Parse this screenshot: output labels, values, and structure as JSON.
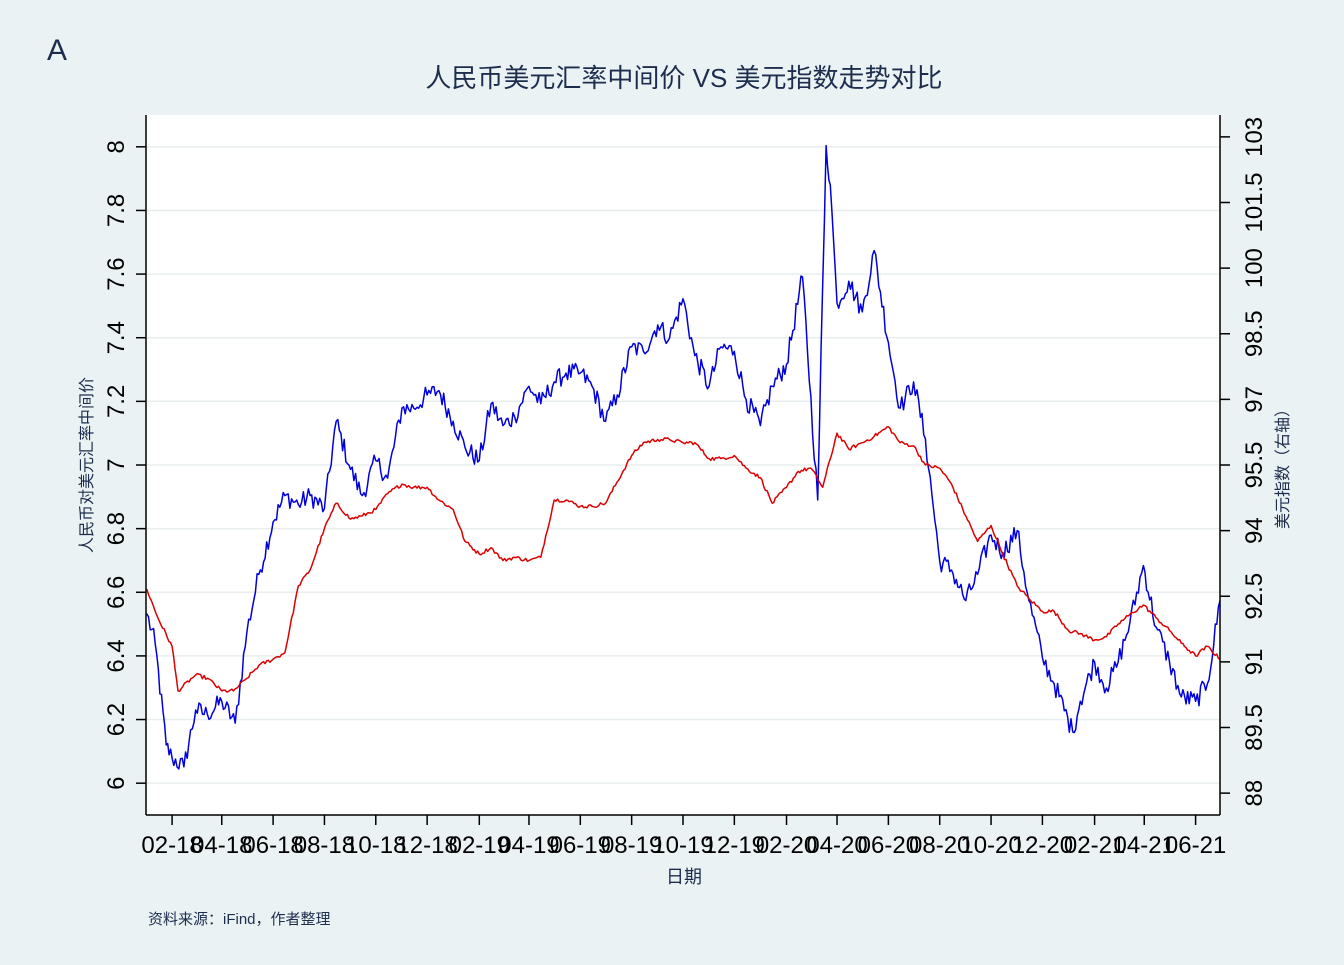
{
  "panel_label": "A",
  "source_note": "资料来源：iFind，作者整理",
  "chart_data": {
    "type": "line",
    "title": "人民币美元汇率中间价 VS 美元指数走势对比",
    "xlabel": "日期",
    "ylabel_left": "人民币对美元汇率中间价",
    "ylabel_right": "美元指数（右轴）",
    "x_range": [
      "2018-01-01",
      "2021-06-30"
    ],
    "x_ticks": [
      "02-18",
      "04-18",
      "06-18",
      "08-18",
      "10-18",
      "12-18",
      "02-19",
      "04-19",
      "06-19",
      "08-19",
      "10-19",
      "12-19",
      "02-20",
      "04-20",
      "06-20",
      "08-20",
      "10-20",
      "12-20",
      "02-21",
      "04-21",
      "06-21"
    ],
    "y_left": {
      "ylim": [
        5.9,
        8.1
      ],
      "ticks": [
        "6",
        "6.2",
        "6.4",
        "6.6",
        "6.8",
        "7",
        "7.2",
        "7.4",
        "7.6",
        "7.8",
        "8"
      ]
    },
    "y_right": {
      "ylim": [
        87.5,
        103.5
      ],
      "ticks": [
        "88",
        "89.5",
        "91",
        "92.5",
        "94",
        "95.5",
        "97",
        "98.5",
        "100",
        "101.5",
        "103"
      ]
    },
    "grid": true,
    "colors": {
      "usd_index": "#0000dd",
      "cny_rate": "#dd0000",
      "axis": "#000000",
      "grid": "#e8eeee",
      "text": "#1e2d4e"
    },
    "series": [
      {
        "axis": "right",
        "color": "#0000dd",
        "points": [
          [
            "2018-01-02",
            92.1
          ],
          [
            "2018-01-12",
            91.4
          ],
          [
            "2018-01-25",
            89.1
          ],
          [
            "2018-02-01",
            88.8
          ],
          [
            "2018-02-15",
            88.6
          ],
          [
            "2018-03-01",
            89.9
          ],
          [
            "2018-03-15",
            89.8
          ],
          [
            "2018-04-01",
            90.1
          ],
          [
            "2018-04-17",
            89.6
          ],
          [
            "2018-05-01",
            91.7
          ],
          [
            "2018-05-15",
            93.0
          ],
          [
            "2018-06-01",
            94.2
          ],
          [
            "2018-06-15",
            94.8
          ],
          [
            "2018-07-01",
            94.6
          ],
          [
            "2018-07-15",
            94.8
          ],
          [
            "2018-08-01",
            94.5
          ],
          [
            "2018-08-15",
            96.5
          ],
          [
            "2018-09-01",
            95.4
          ],
          [
            "2018-09-15",
            94.8
          ],
          [
            "2018-10-01",
            95.6
          ],
          [
            "2018-10-15",
            95.2
          ],
          [
            "2018-11-01",
            96.8
          ],
          [
            "2018-11-15",
            96.8
          ],
          [
            "2018-12-01",
            97.1
          ],
          [
            "2018-12-15",
            97.2
          ],
          [
            "2019-01-01",
            96.5
          ],
          [
            "2019-01-15",
            95.9
          ],
          [
            "2019-02-01",
            95.6
          ],
          [
            "2019-02-15",
            96.9
          ],
          [
            "2019-03-01",
            96.4
          ],
          [
            "2019-03-15",
            96.6
          ],
          [
            "2019-04-01",
            97.3
          ],
          [
            "2019-04-15",
            96.9
          ],
          [
            "2019-05-01",
            97.4
          ],
          [
            "2019-05-15",
            97.6
          ],
          [
            "2019-06-01",
            97.6
          ],
          [
            "2019-06-15",
            97.3
          ],
          [
            "2019-07-01",
            96.5
          ],
          [
            "2019-07-15",
            97.1
          ],
          [
            "2019-08-01",
            98.2
          ],
          [
            "2019-08-15",
            98.1
          ],
          [
            "2019-09-01",
            98.7
          ],
          [
            "2019-09-15",
            98.4
          ],
          [
            "2019-10-01",
            99.3
          ],
          [
            "2019-10-15",
            98.0
          ],
          [
            "2019-11-01",
            97.3
          ],
          [
            "2019-11-15",
            98.2
          ],
          [
            "2019-12-01",
            98.1
          ],
          [
            "2019-12-15",
            97.0
          ],
          [
            "2020-01-01",
            96.4
          ],
          [
            "2020-01-15",
            97.3
          ],
          [
            "2020-02-01",
            97.8
          ],
          [
            "2020-02-20",
            99.8
          ],
          [
            "2020-03-09",
            94.7
          ],
          [
            "2020-03-19",
            102.8
          ],
          [
            "2020-03-24",
            101.9
          ],
          [
            "2020-04-01",
            99.2
          ],
          [
            "2020-04-15",
            99.7
          ],
          [
            "2020-05-01",
            99.0
          ],
          [
            "2020-05-15",
            100.4
          ],
          [
            "2020-06-01",
            98.3
          ],
          [
            "2020-06-15",
            96.8
          ],
          [
            "2020-07-01",
            97.4
          ],
          [
            "2020-07-15",
            96.1
          ],
          [
            "2020-08-01",
            93.3
          ],
          [
            "2020-08-15",
            93.1
          ],
          [
            "2020-09-01",
            92.4
          ],
          [
            "2020-09-15",
            93.0
          ],
          [
            "2020-10-01",
            93.9
          ],
          [
            "2020-10-15",
            93.5
          ],
          [
            "2020-11-01",
            94.0
          ],
          [
            "2020-11-15",
            92.4
          ],
          [
            "2020-12-01",
            91.1
          ],
          [
            "2020-12-15",
            90.5
          ],
          [
            "2021-01-06",
            89.4
          ],
          [
            "2021-01-15",
            90.1
          ],
          [
            "2021-02-01",
            91.0
          ],
          [
            "2021-02-15",
            90.4
          ],
          [
            "2021-03-01",
            91.0
          ],
          [
            "2021-03-15",
            91.9
          ],
          [
            "2021-03-31",
            93.2
          ],
          [
            "2021-04-15",
            91.8
          ],
          [
            "2021-05-01",
            91.0
          ],
          [
            "2021-05-15",
            90.2
          ],
          [
            "2021-06-01",
            90.1
          ],
          [
            "2021-06-15",
            90.5
          ],
          [
            "2021-06-30",
            92.4
          ]
        ]
      },
      {
        "axis": "left",
        "color": "#dd0000",
        "points": [
          [
            "2018-01-02",
            6.61
          ],
          [
            "2018-01-15",
            6.52
          ],
          [
            "2018-02-01",
            6.43
          ],
          [
            "2018-02-08",
            6.29
          ],
          [
            "2018-03-01",
            6.34
          ],
          [
            "2018-03-15",
            6.33
          ],
          [
            "2018-04-01",
            6.29
          ],
          [
            "2018-04-15",
            6.29
          ],
          [
            "2018-05-01",
            6.33
          ],
          [
            "2018-05-15",
            6.37
          ],
          [
            "2018-06-01",
            6.39
          ],
          [
            "2018-06-15",
            6.41
          ],
          [
            "2018-07-01",
            6.62
          ],
          [
            "2018-07-15",
            6.67
          ],
          [
            "2018-08-01",
            6.8
          ],
          [
            "2018-08-15",
            6.88
          ],
          [
            "2018-09-01",
            6.83
          ],
          [
            "2018-09-15",
            6.84
          ],
          [
            "2018-10-01",
            6.86
          ],
          [
            "2018-10-15",
            6.91
          ],
          [
            "2018-11-01",
            6.94
          ],
          [
            "2018-11-15",
            6.93
          ],
          [
            "2018-12-01",
            6.93
          ],
          [
            "2018-12-15",
            6.89
          ],
          [
            "2019-01-01",
            6.86
          ],
          [
            "2019-01-15",
            6.76
          ],
          [
            "2019-02-01",
            6.72
          ],
          [
            "2019-02-15",
            6.74
          ],
          [
            "2019-03-01",
            6.7
          ],
          [
            "2019-03-15",
            6.71
          ],
          [
            "2019-04-01",
            6.7
          ],
          [
            "2019-04-15",
            6.71
          ],
          [
            "2019-05-01",
            6.89
          ],
          [
            "2019-05-15",
            6.89
          ],
          [
            "2019-06-01",
            6.87
          ],
          [
            "2019-06-15",
            6.87
          ],
          [
            "2019-07-01",
            6.88
          ],
          [
            "2019-08-01",
            7.03
          ],
          [
            "2019-08-15",
            7.07
          ],
          [
            "2019-09-01",
            7.08
          ],
          [
            "2019-09-15",
            7.08
          ],
          [
            "2019-10-01",
            7.07
          ],
          [
            "2019-10-15",
            7.07
          ],
          [
            "2019-11-01",
            7.02
          ],
          [
            "2019-11-15",
            7.02
          ],
          [
            "2019-12-01",
            7.03
          ],
          [
            "2019-12-15",
            6.99
          ],
          [
            "2020-01-01",
            6.96
          ],
          [
            "2020-01-15",
            6.88
          ],
          [
            "2020-02-01",
            6.93
          ],
          [
            "2020-02-15",
            6.98
          ],
          [
            "2020-03-01",
            6.99
          ],
          [
            "2020-03-15",
            6.93
          ],
          [
            "2020-04-01",
            7.1
          ],
          [
            "2020-04-15",
            7.05
          ],
          [
            "2020-05-01",
            7.07
          ],
          [
            "2020-05-15",
            7.09
          ],
          [
            "2020-06-01",
            7.12
          ],
          [
            "2020-06-15",
            7.07
          ],
          [
            "2020-07-01",
            7.06
          ],
          [
            "2020-07-15",
            7.0
          ],
          [
            "2020-08-01",
            6.99
          ],
          [
            "2020-08-15",
            6.94
          ],
          [
            "2020-09-01",
            6.84
          ],
          [
            "2020-09-15",
            6.76
          ],
          [
            "2020-10-01",
            6.81
          ],
          [
            "2020-10-15",
            6.72
          ],
          [
            "2020-11-01",
            6.62
          ],
          [
            "2020-11-15",
            6.58
          ],
          [
            "2020-12-01",
            6.54
          ],
          [
            "2020-12-15",
            6.54
          ],
          [
            "2021-01-01",
            6.48
          ],
          [
            "2021-01-15",
            6.47
          ],
          [
            "2021-02-01",
            6.45
          ],
          [
            "2021-02-15",
            6.46
          ],
          [
            "2021-03-01",
            6.5
          ],
          [
            "2021-03-15",
            6.53
          ],
          [
            "2021-03-31",
            6.56
          ],
          [
            "2021-04-15",
            6.52
          ],
          [
            "2021-05-01",
            6.48
          ],
          [
            "2021-05-15",
            6.44
          ],
          [
            "2021-06-01",
            6.4
          ],
          [
            "2021-06-15",
            6.43
          ],
          [
            "2021-06-30",
            6.39
          ]
        ]
      }
    ]
  }
}
